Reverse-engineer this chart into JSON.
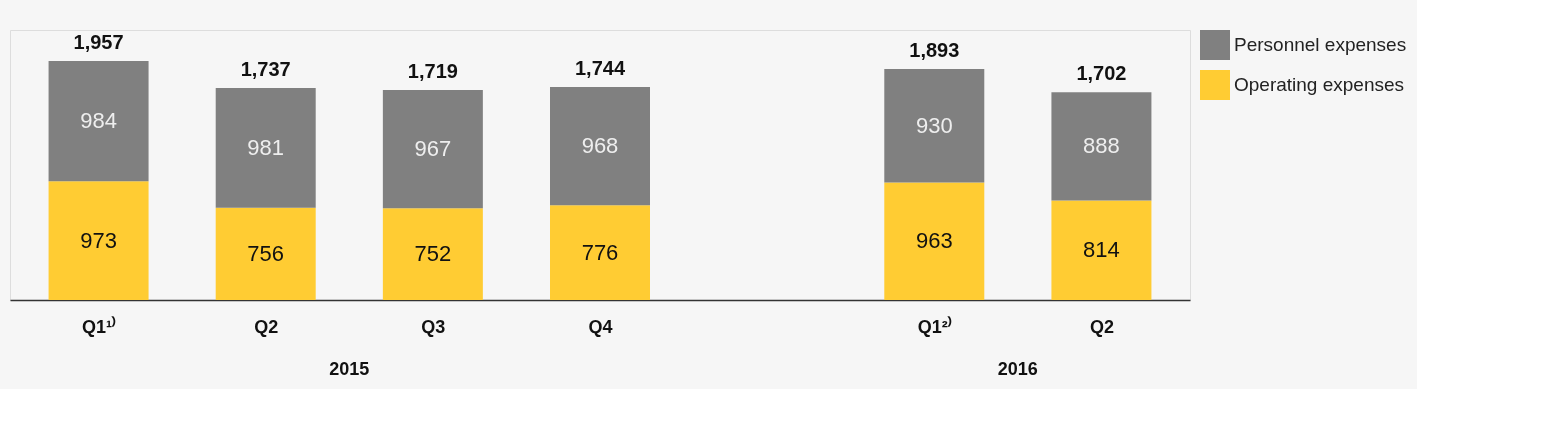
{
  "chart_data": {
    "type": "bar",
    "stacked": true,
    "data_labels": true,
    "legend": "right",
    "categories": [
      "Q1¹⁾",
      "Q2",
      "Q3",
      "Q4",
      null,
      "Q1²⁾",
      "Q2"
    ],
    "series": [
      {
        "name": "Operating expenses",
        "color": "#ffcc33",
        "values": [
          973,
          756,
          752,
          776,
          null,
          963,
          814
        ]
      },
      {
        "name": "Personnel expenses",
        "color": "#808080",
        "values": [
          984,
          981,
          967,
          968,
          null,
          930,
          888
        ]
      }
    ],
    "totals": [
      "1,957",
      "1,737",
      "1,719",
      "1,744",
      null,
      "1,893",
      "1,702"
    ],
    "annotations": [
      "2015",
      "2016"
    ]
  }
}
